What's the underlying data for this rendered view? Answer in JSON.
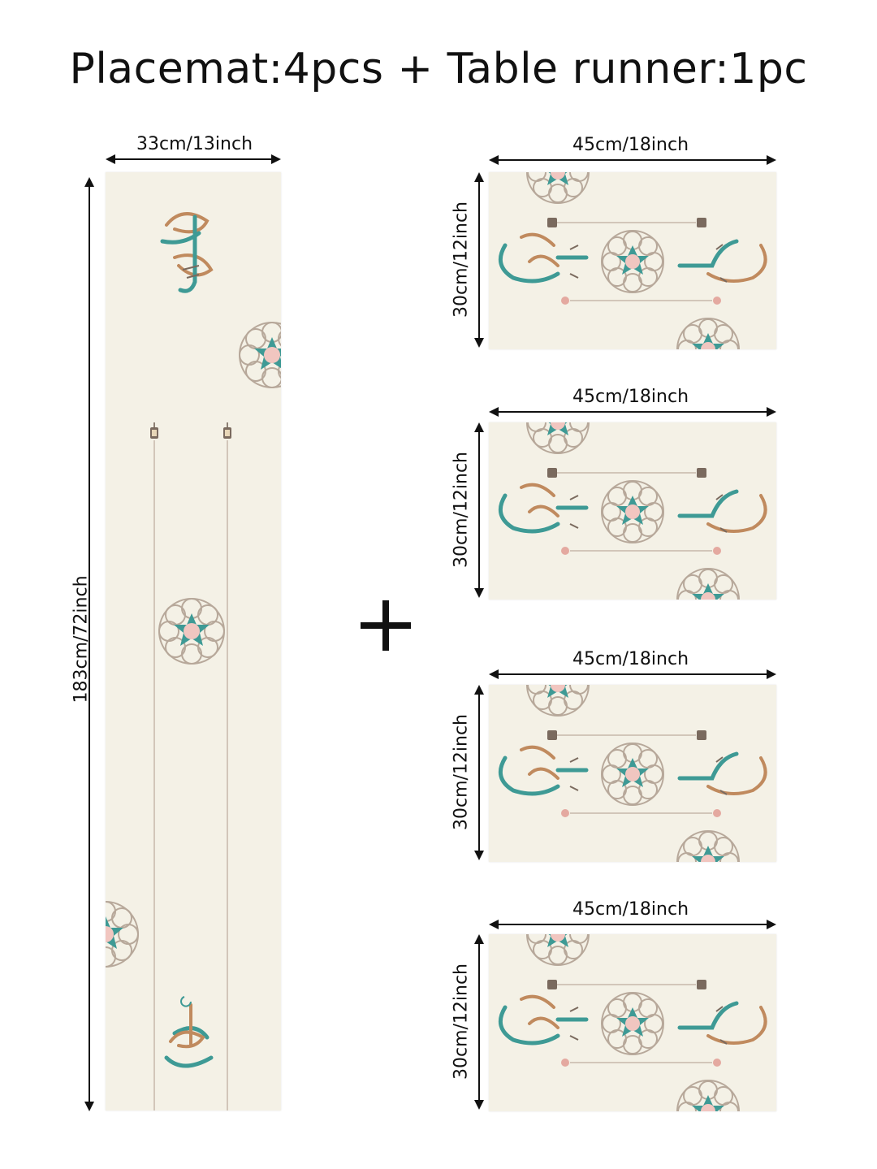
{
  "title": "Placemat:4pcs + Table runner:1pc",
  "runner": {
    "width_label": "33cm/13inch",
    "length_label": "183cm/72inch"
  },
  "placemats": [
    {
      "width_label": "45cm/18inch",
      "height_label": "30cm/12inch"
    },
    {
      "width_label": "45cm/18inch",
      "height_label": "30cm/12inch"
    },
    {
      "width_label": "45cm/18inch",
      "height_label": "30cm/12inch"
    },
    {
      "width_label": "45cm/18inch",
      "height_label": "30cm/12inch"
    }
  ],
  "colors": {
    "fabric": "#f4f1e6",
    "teal": "#3e9a95",
    "copper": "#c08a5e",
    "pink": "#f1c6c0",
    "outline": "#b7a89a"
  },
  "icons": [
    "plus-icon",
    "star-rosette-icon",
    "calligraphy-emblem-icon",
    "lantern-icon"
  ]
}
